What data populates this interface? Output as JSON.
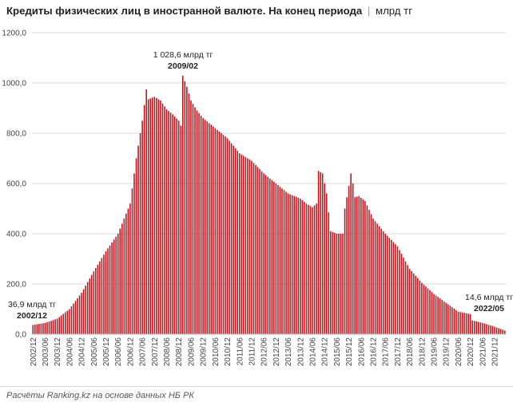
{
  "title": {
    "main": "Кредиты физических лиц в иностранной валюте. На конец периода",
    "separator": "|",
    "unit": "млрд тг"
  },
  "source": "Расчёты Ranking.kz на основе данных НБ РК",
  "chart_data": {
    "type": "bar",
    "title": "Кредиты физических лиц в иностранной валюте. На конец периода",
    "ylabel": "млрд тг",
    "ylim": [
      0,
      1200
    ],
    "ytick_labels": [
      "0,0",
      "200,0",
      "400,0",
      "600,0",
      "800,0",
      "1000,0",
      "1200,0"
    ],
    "grid": true,
    "legend": "none",
    "bar_color": "#c0141c",
    "first_period": "2002/12",
    "last_period": "2022/05",
    "xtick_labels": [
      "2002/12",
      "2003/06",
      "2003/12",
      "2004/06",
      "2004/12",
      "2005/06",
      "2005/12",
      "2006/06",
      "2006/12",
      "2007/06",
      "2007/12",
      "2008/06",
      "2008/12",
      "2009/06",
      "2009/12",
      "2010/06",
      "2010/12",
      "2011/06",
      "2011/12",
      "2012/06",
      "2012/12",
      "2013/06",
      "2013/12",
      "2014/06",
      "2014/12",
      "2015/06",
      "2015/12",
      "2016/06",
      "2016/12",
      "2017/06",
      "2017/12",
      "2018/06",
      "2018/12",
      "2019/06",
      "2019/12",
      "2020/06",
      "2020/12",
      "2021/06",
      "2021/12"
    ],
    "anchors": [
      [
        "2002/12",
        36.9
      ],
      [
        "2003/06",
        45
      ],
      [
        "2003/12",
        62
      ],
      [
        "2004/06",
        100
      ],
      [
        "2004/12",
        165
      ],
      [
        "2005/06",
        250
      ],
      [
        "2005/12",
        330
      ],
      [
        "2006/06",
        400
      ],
      [
        "2006/12",
        520
      ],
      [
        "2007/03",
        700
      ],
      [
        "2007/06",
        850
      ],
      [
        "2007/08",
        975
      ],
      [
        "2007/09",
        935
      ],
      [
        "2007/12",
        945
      ],
      [
        "2008/03",
        930
      ],
      [
        "2008/06",
        895
      ],
      [
        "2008/09",
        875
      ],
      [
        "2008/12",
        850
      ],
      [
        "2009/01",
        830
      ],
      [
        "2009/02",
        1028.6
      ],
      [
        "2009/04",
        985
      ],
      [
        "2009/06",
        930
      ],
      [
        "2009/09",
        890
      ],
      [
        "2009/12",
        860
      ],
      [
        "2010/06",
        820
      ],
      [
        "2010/12",
        780
      ],
      [
        "2011/06",
        720
      ],
      [
        "2011/12",
        690
      ],
      [
        "2012/06",
        640
      ],
      [
        "2012/12",
        600
      ],
      [
        "2013/06",
        560
      ],
      [
        "2013/12",
        540
      ],
      [
        "2014/03",
        520
      ],
      [
        "2014/06",
        505
      ],
      [
        "2014/08",
        520
      ],
      [
        "2014/09",
        650
      ],
      [
        "2014/11",
        640
      ],
      [
        "2015/01",
        560
      ],
      [
        "2015/03",
        410
      ],
      [
        "2015/06",
        400
      ],
      [
        "2015/09",
        400
      ],
      [
        "2015/10",
        500
      ],
      [
        "2015/12",
        590
      ],
      [
        "2016/01",
        640
      ],
      [
        "2016/02",
        600
      ],
      [
        "2016/03",
        545
      ],
      [
        "2016/05",
        550
      ],
      [
        "2016/08",
        530
      ],
      [
        "2016/12",
        460
      ],
      [
        "2017/06",
        400
      ],
      [
        "2017/12",
        350
      ],
      [
        "2018/06",
        260
      ],
      [
        "2018/12",
        205
      ],
      [
        "2019/06",
        160
      ],
      [
        "2019/12",
        125
      ],
      [
        "2020/06",
        90
      ],
      [
        "2020/12",
        80
      ],
      [
        "2021/01",
        55
      ],
      [
        "2021/06",
        45
      ],
      [
        "2021/12",
        30
      ],
      [
        "2022/05",
        14.6
      ]
    ],
    "annotations": [
      {
        "value_text": "36,9 млрд тг",
        "period_text": "2002/12"
      },
      {
        "value_text": "1 028,6 млрд тг",
        "period_text": "2009/02"
      },
      {
        "value_text": "14,6 млрд тг",
        "period_text": "2022/05"
      }
    ]
  }
}
